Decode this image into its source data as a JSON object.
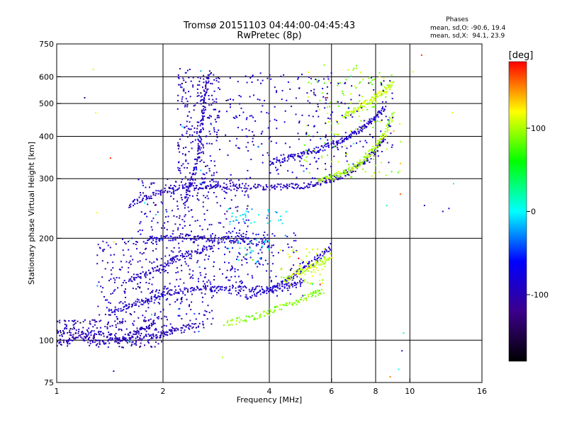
{
  "chart_data": {
    "type": "scatter",
    "title": "Tromsø 20151103 04:44:00-04:45:43",
    "subtitle": "RwPretec (8p)",
    "xlabel": "Frequency [MHz]",
    "ylabel": "Stationary phase Virtual Height [km]",
    "x_scale": "log",
    "y_scale": "log",
    "xlim": [
      1,
      16
    ],
    "ylim": [
      75,
      750
    ],
    "x_ticks": [
      1,
      2,
      4,
      6,
      8,
      10,
      16
    ],
    "x_tick_labels": [
      "1",
      "2",
      "4",
      "6",
      "8",
      "10",
      "16"
    ],
    "y_ticks": [
      75,
      100,
      200,
      300,
      400,
      500,
      600,
      750
    ],
    "y_tick_labels": [
      "75",
      "100",
      "200",
      "300",
      "400",
      "500",
      "600",
      "750"
    ],
    "x_gridlines": [
      2,
      4,
      6,
      8,
      10
    ],
    "y_gridlines": [
      100,
      200,
      300,
      400,
      500,
      600
    ],
    "grid": true,
    "stats_title": "Phases",
    "stats_lines": [
      "mean, sd,O: -90.6, 19.4",
      "mean, sd,X:  94.1, 23.9"
    ],
    "colorbar": {
      "label": "[deg]",
      "range": [
        -180,
        180
      ],
      "ticks": [
        100,
        0,
        -100
      ],
      "tick_labels": [
        "100",
        "0",
        "-100"
      ],
      "colors": [
        "#000000",
        "#3c008c",
        "#0000ff",
        "#00ffff",
        "#00ff00",
        "#ffff00",
        "#ff0000"
      ]
    },
    "traces": [
      {
        "x": [
          1.0,
          1.15,
          1.3,
          1.5,
          1.7,
          1.9
        ],
        "y": [
          97,
          103,
          99,
          100,
          106,
          112
        ],
        "phase": -100
      },
      {
        "x": [
          1.0,
          1.2,
          1.4,
          1.6,
          1.8,
          2.0,
          2.2,
          2.6
        ],
        "y": [
          107,
          106,
          103,
          100,
          102,
          104,
          108,
          112
        ],
        "phase": -95
      },
      {
        "x": [
          1.4,
          1.6,
          1.8,
          2.0,
          2.3,
          2.6,
          3.0,
          3.5,
          4.0,
          4.5,
          5.0
        ],
        "y": [
          120,
          126,
          131,
          136,
          140,
          142,
          143,
          142,
          141,
          143,
          148
        ],
        "phase": -90
      },
      {
        "x": [
          1.6,
          1.8,
          2.0,
          2.2,
          2.5,
          2.8
        ],
        "y": [
          150,
          158,
          165,
          175,
          183,
          190
        ],
        "phase": -95
      },
      {
        "x": [
          1.8,
          2.0,
          2.3,
          2.6,
          3.0,
          3.4,
          4.0
        ],
        "y": [
          195,
          200,
          202,
          200,
          198,
          196,
          195
        ],
        "phase": -90
      },
      {
        "x": [
          3.0,
          3.5,
          4.0,
          4.6,
          5.2,
          5.7
        ],
        "y": [
          112,
          116,
          121,
          128,
          135,
          140
        ],
        "phase": 90
      },
      {
        "x": [
          3.4,
          4.0,
          4.5,
          5.0,
          5.5,
          6.0
        ],
        "y": [
          132,
          140,
          150,
          162,
          175,
          190
        ],
        "phase": -85
      },
      {
        "x": [
          4.4,
          4.8,
          5.2,
          5.6,
          6.0
        ],
        "y": [
          150,
          158,
          164,
          170,
          178
        ],
        "phase": 105
      },
      {
        "x": [
          1.6,
          1.8,
          2.0,
          2.3,
          2.6,
          3.0,
          3.5,
          4.0,
          4.5,
          5.0,
          5.5,
          6.0,
          6.5,
          7.0,
          7.5,
          8.0,
          8.5
        ],
        "y": [
          250,
          265,
          275,
          282,
          285,
          285,
          284,
          283,
          284,
          286,
          290,
          298,
          308,
          322,
          340,
          365,
          400
        ],
        "phase": -95
      },
      {
        "x": [
          5.5,
          6.0,
          6.5,
          7.0,
          7.5,
          8.0,
          8.5,
          9.0
        ],
        "y": [
          295,
          302,
          312,
          325,
          345,
          372,
          410,
          470
        ],
        "phase": 100
      },
      {
        "x": [
          4.0,
          4.5,
          5.0,
          5.5,
          6.0,
          6.5,
          7.0,
          7.5,
          8.0,
          8.5
        ],
        "y": [
          335,
          345,
          355,
          365,
          378,
          392,
          410,
          430,
          455,
          490
        ],
        "phase": -90
      },
      {
        "x": [
          2.3,
          2.4,
          2.5,
          2.55,
          2.6,
          2.65,
          2.7
        ],
        "y": [
          250,
          290,
          340,
          400,
          470,
          540,
          620
        ],
        "phase": -95
      },
      {
        "x": [
          6.5,
          7.0,
          7.5,
          8.0,
          8.5,
          9.0
        ],
        "y": [
          460,
          480,
          500,
          520,
          545,
          575
        ],
        "phase": 105
      }
    ],
    "clusters": [
      {
        "x": [
          1.0,
          2.0
        ],
        "y": [
          95,
          115
        ],
        "phase": -100,
        "count": 160
      },
      {
        "x": [
          1.3,
          2.8
        ],
        "y": [
          105,
          200
        ],
        "phase": -95,
        "count": 380
      },
      {
        "x": [
          1.7,
          3.5
        ],
        "y": [
          200,
          300
        ],
        "phase": -95,
        "count": 220
      },
      {
        "x": [
          2.2,
          2.9
        ],
        "y": [
          280,
          640
        ],
        "phase": -95,
        "count": 260
      },
      {
        "x": [
          2.7,
          5.0
        ],
        "y": [
          135,
          210
        ],
        "phase": -85,
        "count": 170
      },
      {
        "x": [
          3.0,
          6.0
        ],
        "y": [
          300,
          620
        ],
        "phase": -90,
        "count": 170
      },
      {
        "x": [
          5.0,
          9.5
        ],
        "y": [
          300,
          650
        ],
        "phase": 95,
        "count": 140
      },
      {
        "x": [
          4.8,
          9.0
        ],
        "y": [
          330,
          600
        ],
        "phase": -90,
        "count": 110
      },
      {
        "x": [
          3.0,
          4.5
        ],
        "y": [
          220,
          245
        ],
        "phase": -10,
        "count": 35
      },
      {
        "x": [
          4.3,
          5.8
        ],
        "y": [
          145,
          190
        ],
        "phase": 110,
        "count": 55
      },
      {
        "x": [
          3.0,
          4.0
        ],
        "y": [
          170,
          200
        ],
        "phase": 5,
        "count": 25
      }
    ],
    "scatter_outliers": [
      {
        "x": 1.27,
        "y": 630,
        "phase": 110
      },
      {
        "x": 1.2,
        "y": 520,
        "phase": -100
      },
      {
        "x": 1.29,
        "y": 470,
        "phase": 120
      },
      {
        "x": 1.42,
        "y": 345,
        "phase": 170
      },
      {
        "x": 1.3,
        "y": 238,
        "phase": 120
      },
      {
        "x": 1.45,
        "y": 195,
        "phase": 130
      },
      {
        "x": 1.45,
        "y": 81,
        "phase": -100
      },
      {
        "x": 2.95,
        "y": 89,
        "phase": 100
      },
      {
        "x": 9.5,
        "y": 93,
        "phase": -100
      },
      {
        "x": 9.3,
        "y": 82,
        "phase": 0
      },
      {
        "x": 9.6,
        "y": 105,
        "phase": 10
      },
      {
        "x": 8.8,
        "y": 78,
        "phase": 150
      },
      {
        "x": 10.8,
        "y": 695,
        "phase": 170
      },
      {
        "x": 10.2,
        "y": 620,
        "phase": 110
      },
      {
        "x": 13.2,
        "y": 470,
        "phase": 115
      },
      {
        "x": 13.3,
        "y": 290,
        "phase": 10
      },
      {
        "x": 12.4,
        "y": 240,
        "phase": -100
      },
      {
        "x": 12.9,
        "y": 245,
        "phase": -80
      },
      {
        "x": 11.0,
        "y": 250,
        "phase": -100
      },
      {
        "x": 9.4,
        "y": 270,
        "phase": 160
      },
      {
        "x": 8.6,
        "y": 250,
        "phase": 20
      },
      {
        "x": 9.0,
        "y": 415,
        "phase": 140
      }
    ]
  }
}
